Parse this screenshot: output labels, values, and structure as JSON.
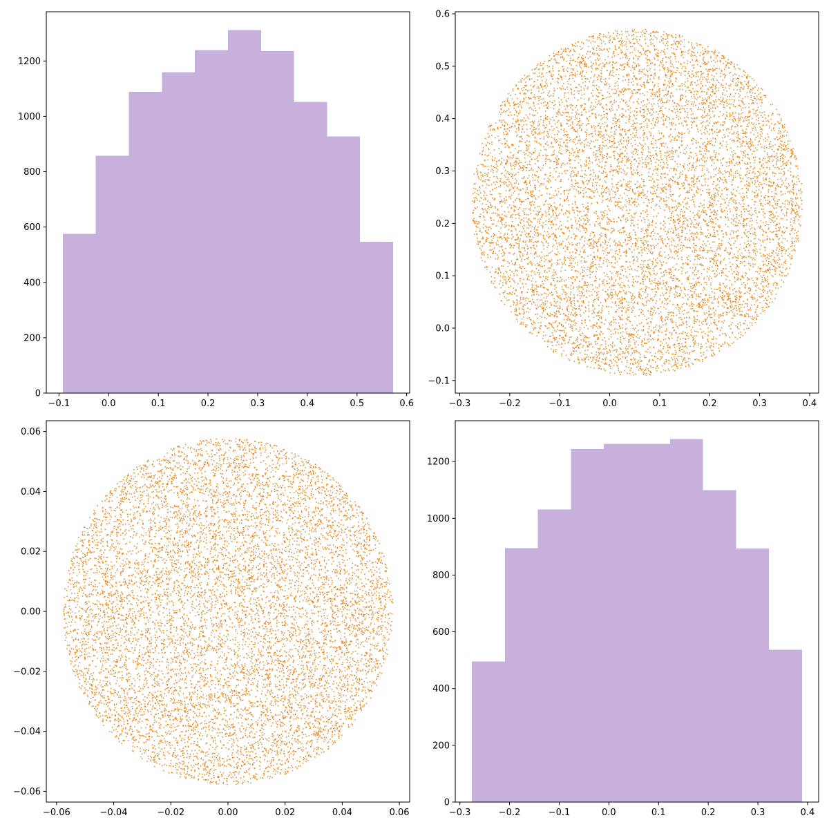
{
  "figure": {
    "layout": "2x2 subplots",
    "background": "#ffffff"
  },
  "chart_data": [
    {
      "panel": "top-left",
      "type": "bar",
      "histogram": true,
      "color": "#c7b0dc",
      "bin_edges": [
        -0.0923,
        -0.0258,
        0.0407,
        0.1072,
        0.1737,
        0.2402,
        0.3067,
        0.3732,
        0.4397,
        0.5062,
        0.5727
      ],
      "values": [
        576,
        858,
        1089,
        1160,
        1240,
        1312,
        1236,
        1052,
        928,
        547
      ],
      "xlim": [
        -0.1255,
        0.606
      ],
      "ylim": [
        0,
        1378
      ],
      "xticks": [
        -0.1,
        0.0,
        0.1,
        0.2,
        0.3,
        0.4,
        0.5,
        0.6
      ],
      "xtick_labels": [
        "−0.1",
        "0.0",
        "0.1",
        "0.2",
        "0.3",
        "0.4",
        "0.5",
        "0.6"
      ],
      "yticks": [
        0,
        200,
        400,
        600,
        800,
        1000,
        1200
      ],
      "ytick_labels": [
        "0",
        "200",
        "400",
        "600",
        "800",
        "1000",
        "1200"
      ],
      "grid": false,
      "title": "",
      "xlabel": "",
      "ylabel": ""
    },
    {
      "panel": "top-right",
      "type": "scatter",
      "color": "#ff7f0e",
      "n_points": 10000,
      "distribution": "uniform disk",
      "center": [
        0.055,
        0.24
      ],
      "radius": 0.331,
      "xlim": [
        -0.309,
        0.418
      ],
      "ylim": [
        -0.124,
        0.604
      ],
      "xticks": [
        -0.3,
        -0.2,
        -0.1,
        0.0,
        0.1,
        0.2,
        0.3,
        0.4
      ],
      "xtick_labels": [
        "−0.3",
        "−0.2",
        "−0.1",
        "0.0",
        "0.1",
        "0.2",
        "0.3",
        "0.4"
      ],
      "yticks": [
        -0.1,
        0.0,
        0.1,
        0.2,
        0.3,
        0.4,
        0.5,
        0.6
      ],
      "ytick_labels": [
        "−0.1",
        "0.0",
        "0.1",
        "0.2",
        "0.3",
        "0.4",
        "0.5",
        "0.6"
      ],
      "grid": false,
      "title": "",
      "xlabel": "",
      "ylabel": ""
    },
    {
      "panel": "bottom-left",
      "type": "scatter",
      "color": "#ff7f0e",
      "n_points": 10000,
      "distribution": "uniform disk",
      "center": [
        0.0,
        0.0
      ],
      "radius": 0.0578,
      "xlim": [
        -0.0636,
        0.0636
      ],
      "ylim": [
        -0.0636,
        0.0636
      ],
      "xticks": [
        -0.06,
        -0.04,
        -0.02,
        0.0,
        0.02,
        0.04,
        0.06
      ],
      "xtick_labels": [
        "−0.06",
        "−0.04",
        "−0.02",
        "0.00",
        "0.02",
        "0.04",
        "0.06"
      ],
      "yticks": [
        -0.06,
        -0.04,
        -0.02,
        0.0,
        0.02,
        0.04,
        0.06
      ],
      "ytick_labels": [
        "−0.06",
        "−0.04",
        "−0.02",
        "0.00",
        "0.02",
        "0.04",
        "0.06"
      ],
      "grid": false,
      "title": "",
      "xlabel": "",
      "ylabel": ""
    },
    {
      "panel": "bottom-right",
      "type": "bar",
      "histogram": true,
      "color": "#c7b0dc",
      "bin_edges": [
        -0.276,
        -0.2095,
        -0.143,
        -0.0765,
        -0.01,
        0.0565,
        0.123,
        0.1895,
        0.256,
        0.3225,
        0.389
      ],
      "values": [
        496,
        895,
        1031,
        1244,
        1263,
        1263,
        1280,
        1099,
        893,
        537
      ],
      "xlim": [
        -0.3093,
        0.4223
      ],
      "ylim": [
        0,
        1344
      ],
      "xticks": [
        -0.3,
        -0.2,
        -0.1,
        0.0,
        0.1,
        0.2,
        0.3,
        0.4
      ],
      "xtick_labels": [
        "−0.3",
        "−0.2",
        "−0.1",
        "0.0",
        "0.1",
        "0.2",
        "0.3",
        "0.4"
      ],
      "yticks": [
        0,
        200,
        400,
        600,
        800,
        1000,
        1200
      ],
      "ytick_labels": [
        "0",
        "200",
        "400",
        "600",
        "800",
        "1000",
        "1200"
      ],
      "grid": false,
      "title": "",
      "xlabel": "",
      "ylabel": ""
    }
  ]
}
